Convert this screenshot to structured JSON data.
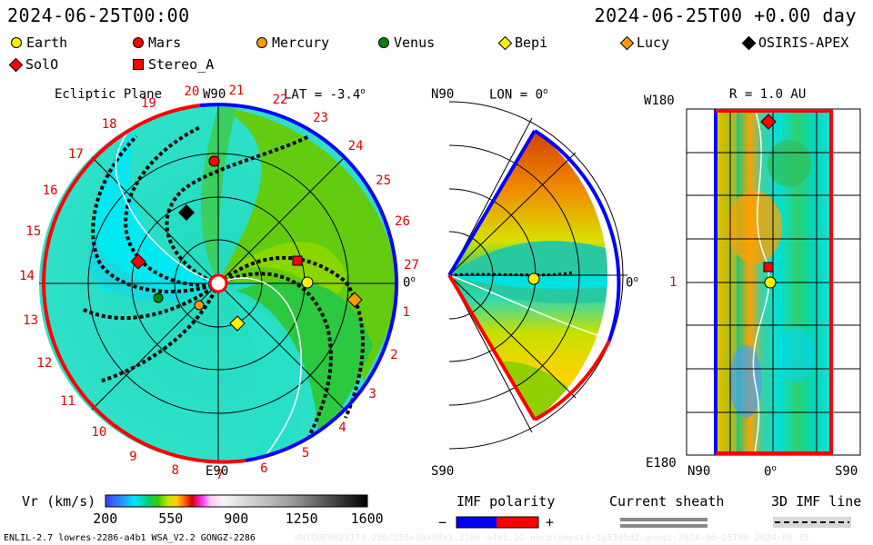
{
  "header": {
    "left_time": "2024-06-25T00:00",
    "right_time": "2024-06-25T00 +0.00 day"
  },
  "legend": [
    {
      "name": "Earth",
      "shape": "circle",
      "color": "#ffee00"
    },
    {
      "name": "Mars",
      "shape": "circle",
      "color": "#ff0000"
    },
    {
      "name": "Mercury",
      "shape": "circle",
      "color": "#ff9900"
    },
    {
      "name": "Venus",
      "shape": "circle",
      "color": "#008800"
    },
    {
      "name": "Bepi",
      "shape": "diamond",
      "color": "#ffee00"
    },
    {
      "name": "Lucy",
      "shape": "diamond",
      "color": "#ff9900"
    },
    {
      "name": "OSIRIS-APEX",
      "shape": "diamond",
      "color": "#000000"
    },
    {
      "name": "SolO",
      "shape": "diamond",
      "color": "#ff0000"
    },
    {
      "name": "Stereo_A",
      "shape": "square",
      "color": "#ff0000"
    }
  ],
  "panels": {
    "ecliptic": {
      "title": "Ecliptic Plane",
      "top_label": "W90",
      "lat_label": "LAT = -3.4",
      "lat_sup": "o",
      "right_label": "0",
      "right_sup": "o",
      "bottom_label": "E90",
      "sector_numbers": [
        "1",
        "2",
        "3",
        "4",
        "5",
        "6",
        "7",
        "8",
        "9",
        "10",
        "11",
        "12",
        "13",
        "14",
        "15",
        "16",
        "17",
        "18",
        "19",
        "20",
        "21",
        "22",
        "23",
        "24",
        "25",
        "26",
        "27"
      ]
    },
    "meridional": {
      "top_left": "N90",
      "lon_label": "LON = 0",
      "lon_sup": "o",
      "right_label": "0",
      "right_sup": "o",
      "bottom_left": "S90"
    },
    "radial": {
      "title": "R = 1.0 AU",
      "top_left": "W180",
      "mid_left": "1",
      "bottom_left": "E180",
      "x_left": "N90",
      "x_mid": "0",
      "x_mid_sup": "o",
      "x_right": "S90"
    }
  },
  "colorbar": {
    "label": "Vr (km/s)",
    "ticks": [
      "200",
      "550",
      "900",
      "1250",
      "1600"
    ]
  },
  "imf": {
    "title": "IMF polarity",
    "minus": "−",
    "plus": "+",
    "colors": [
      "#0000ff",
      "#ff0000"
    ]
  },
  "sheath": {
    "title": "Current sheath"
  },
  "imf3d": {
    "title": "3D IMF line"
  },
  "footer": {
    "left": "ENLIL-2.7 lowres-2286-a4b1 WSA_V2.2 GONGZ-2286",
    "right": "UNIQUE0023173.250/256x30x90x1.2286-a4b1.1G-nocplumestd-1g53d5d2.gongz-2024-06-25T00      2024-06-25"
  },
  "colors": {
    "accent_red": "#e00000",
    "positive_polarity": "#ff0000",
    "negative_polarity": "#0000ff"
  }
}
